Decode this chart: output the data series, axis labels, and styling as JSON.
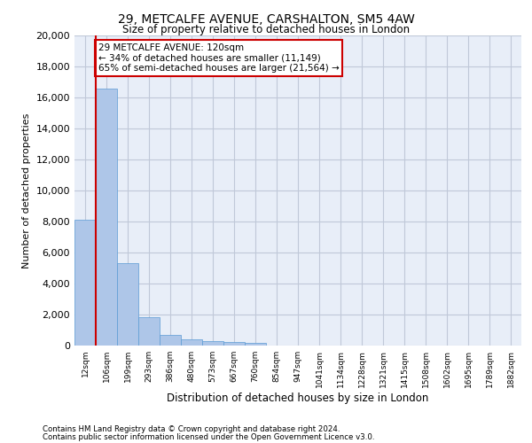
{
  "title_line1": "29, METCALFE AVENUE, CARSHALTON, SM5 4AW",
  "title_line2": "Size of property relative to detached houses in London",
  "xlabel": "Distribution of detached houses by size in London",
  "ylabel": "Number of detached properties",
  "footer_line1": "Contains HM Land Registry data © Crown copyright and database right 2024.",
  "footer_line2": "Contains public sector information licensed under the Open Government Licence v3.0.",
  "bin_labels": [
    "12sqm",
    "106sqm",
    "199sqm",
    "293sqm",
    "386sqm",
    "480sqm",
    "573sqm",
    "667sqm",
    "760sqm",
    "854sqm",
    "947sqm",
    "1041sqm",
    "1134sqm",
    "1228sqm",
    "1321sqm",
    "1415sqm",
    "1508sqm",
    "1602sqm",
    "1695sqm",
    "1789sqm",
    "1882sqm"
  ],
  "bar_values": [
    8100,
    16600,
    5300,
    1850,
    700,
    380,
    280,
    210,
    190,
    0,
    0,
    0,
    0,
    0,
    0,
    0,
    0,
    0,
    0,
    0,
    0
  ],
  "property_bin_index": 1,
  "annotation_text": "29 METCALFE AVENUE: 120sqm\n← 34% of detached houses are smaller (11,149)\n65% of semi-detached houses are larger (21,564) →",
  "bar_color": "#aec6e8",
  "bar_edge_color": "#5b9bd5",
  "highlight_line_color": "#cc0000",
  "annotation_box_color": "#cc0000",
  "annotation_bg_color": "#ffffff",
  "ylim": [
    0,
    20000
  ],
  "yticks": [
    0,
    2000,
    4000,
    6000,
    8000,
    10000,
    12000,
    14000,
    16000,
    18000,
    20000
  ],
  "grid_color": "#c0c8d8",
  "bg_color": "#e8eef8"
}
